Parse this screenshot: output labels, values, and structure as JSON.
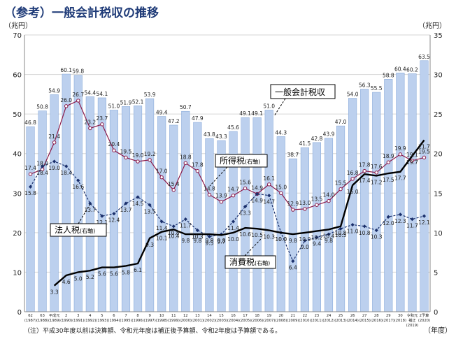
{
  "title": "（参考）一般会計税収の推移",
  "note": "（注）平成30年度以前は決算額、令和元年度は補正後予算額、令和2年度は予算額である。",
  "colors": {
    "bar": "#bcd0ee",
    "bar_edge": "#7fa3d6",
    "total_line": "#000000",
    "income_tax": "#8b1a4a",
    "corporate_tax": "#1a2f6b",
    "consumption_tax": "#000000"
  },
  "chart_data": {
    "type": "bar",
    "title": "",
    "y_left_label": "（兆円）",
    "y_right_label": "（兆円）",
    "x_unit_label": "（年度）",
    "y_left_ticks": [
      "0",
      "10",
      "20",
      "30",
      "40",
      "50",
      "60",
      "70"
    ],
    "y_right_ticks": [
      "0",
      "5",
      "10",
      "15",
      "20",
      "25",
      "30",
      "35"
    ],
    "y_left_range": [
      0,
      70
    ],
    "y_right_range": [
      0,
      35
    ],
    "categories": [
      {
        "l1": "62",
        "l2": "(1987)"
      },
      {
        "l1": "63",
        "l2": "(1988)"
      },
      {
        "l1": "平成元",
        "l2": "(1989)"
      },
      {
        "l1": "2",
        "l2": "(1990)"
      },
      {
        "l1": "3",
        "l2": "(1991)"
      },
      {
        "l1": "4",
        "l2": "(1992)"
      },
      {
        "l1": "5",
        "l2": "(1993)"
      },
      {
        "l1": "6",
        "l2": "(1994)"
      },
      {
        "l1": "7",
        "l2": "(1995)"
      },
      {
        "l1": "8",
        "l2": "(1996)"
      },
      {
        "l1": "9",
        "l2": "(1997)"
      },
      {
        "l1": "10",
        "l2": "(1998)"
      },
      {
        "l1": "11",
        "l2": "(1999)"
      },
      {
        "l1": "12",
        "l2": "(2000)"
      },
      {
        "l1": "13",
        "l2": "(2001)"
      },
      {
        "l1": "14",
        "l2": "(2002)"
      },
      {
        "l1": "15",
        "l2": "(2003)"
      },
      {
        "l1": "16",
        "l2": "(2004)"
      },
      {
        "l1": "17",
        "l2": "(2005)"
      },
      {
        "l1": "18",
        "l2": "(2006)"
      },
      {
        "l1": "19",
        "l2": "(2007)"
      },
      {
        "l1": "20",
        "l2": "(2008)"
      },
      {
        "l1": "21",
        "l2": "(2009)"
      },
      {
        "l1": "22",
        "l2": "(2010)"
      },
      {
        "l1": "23",
        "l2": "(2011)"
      },
      {
        "l1": "24",
        "l2": "(2012)"
      },
      {
        "l1": "25",
        "l2": "(2013)"
      },
      {
        "l1": "26",
        "l2": "(2014)"
      },
      {
        "l1": "27",
        "l2": "(2015)"
      },
      {
        "l1": "28",
        "l2": "(2016)"
      },
      {
        "l1": "29",
        "l2": "(2017)"
      },
      {
        "l1": "30",
        "l2": "(2018)"
      },
      {
        "l1": "令和元",
        "l2": "補正",
        "l3": "(2019)"
      },
      {
        "l1": "2予算",
        "l2": "(2020)"
      }
    ],
    "series": [
      {
        "name": "一般会計税収",
        "axis": "left",
        "values": [
          46.8,
          50.8,
          54.9,
          60.1,
          59.8,
          54.4,
          54.1,
          51.0,
          51.9,
          52.1,
          53.9,
          49.4,
          47.2,
          50.7,
          47.9,
          43.8,
          43.3,
          45.6,
          49.1,
          49.1,
          51.0,
          44.3,
          38.7,
          41.5,
          42.8,
          43.9,
          47.0,
          54.0,
          56.3,
          55.5,
          58.8,
          60.4,
          60.2,
          63.5
        ]
      },
      {
        "name": "所得税",
        "axis": "right",
        "values": [
          17.4,
          18.0,
          21.4,
          26.0,
          26.7,
          23.2,
          23.7,
          20.4,
          19.5,
          19.0,
          19.2,
          17.0,
          15.4,
          18.8,
          17.8,
          14.8,
          13.9,
          14.7,
          15.6,
          14.9,
          16.1,
          15.0,
          12.9,
          13.0,
          13.5,
          14.0,
          15.5,
          16.8,
          17.8,
          17.6,
          18.9,
          19.9,
          19.1,
          19.5
        ]
      },
      {
        "name": "法人税",
        "axis": "right",
        "values": [
          15.8,
          18.4,
          19.0,
          18.4,
          16.6,
          13.7,
          12.1,
          12.4,
          13.7,
          14.5,
          13.5,
          11.4,
          10.8,
          11.7,
          10.3,
          9.5,
          9.8,
          11.4,
          13.3,
          14.9,
          14.7,
          10.0,
          6.4,
          9.0,
          9.4,
          9.8,
          10.5,
          11.0,
          10.8,
          10.3,
          12.0,
          12.3,
          11.7,
          12.1
        ]
      },
      {
        "name": "消費税",
        "axis": "right",
        "values": [
          null,
          null,
          3.3,
          4.6,
          5.0,
          5.2,
          5.6,
          5.6,
          5.8,
          6.1,
          9.3,
          10.1,
          10.4,
          9.8,
          9.8,
          9.8,
          9.7,
          10.0,
          10.6,
          10.5,
          10.3,
          10.0,
          9.8,
          10.0,
          10.2,
          10.4,
          10.8,
          16.0,
          17.4,
          17.2,
          17.5,
          17.7,
          19.7,
          21.7
        ]
      }
    ],
    "annotations": [
      {
        "text": "一般会計税収",
        "target": "一般会計税収"
      },
      {
        "text": "所得税",
        "suffix": "(右軸)",
        "target": "所得税"
      },
      {
        "text": "法人税",
        "suffix": "(右軸)",
        "target": "法人税"
      },
      {
        "text": "消費税",
        "suffix": "(右軸)",
        "target": "消費税"
      }
    ]
  }
}
